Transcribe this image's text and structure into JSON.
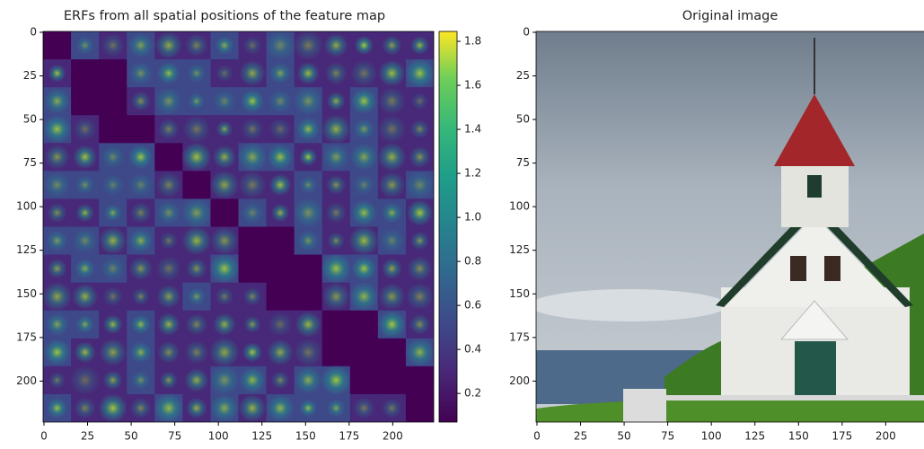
{
  "chart_data": [
    {
      "type": "heatmap",
      "title": "ERFs from all spatial positions of the feature map",
      "xlim": [
        -0.5,
        223.5
      ],
      "ylim": [
        223.5,
        -0.5
      ],
      "xticks": [
        0,
        25,
        50,
        75,
        100,
        125,
        150,
        175,
        200
      ],
      "yticks": [
        0,
        25,
        50,
        75,
        100,
        125,
        150,
        175,
        200
      ],
      "colormap": "viridis",
      "colorbar": {
        "clim": [
          0.07,
          1.845
        ],
        "ticks": [
          0.2,
          0.4,
          0.6,
          0.8,
          {
            "value": 1,
            "label": "1.0"
          },
          1.2,
          1.4,
          1.6,
          1.8
        ]
      }
    },
    {
      "type": "image",
      "title": "Original image",
      "xlim": [
        -0.5,
        223.5
      ],
      "ylim": [
        223.5,
        -0.5
      ],
      "xticks": [
        0,
        25,
        50,
        75,
        100,
        125,
        150,
        175,
        200
      ],
      "yticks": [
        0,
        25,
        50,
        75,
        100,
        125,
        150,
        175,
        200
      ]
    }
  ]
}
